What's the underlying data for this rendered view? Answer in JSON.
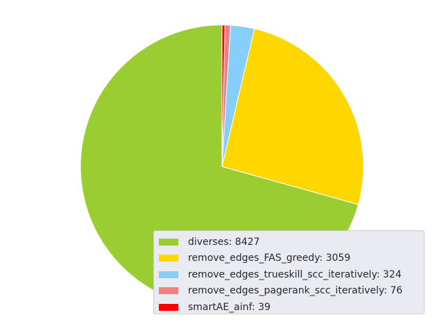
{
  "chart_data": {
    "type": "pie",
    "title": "",
    "slices": [
      {
        "label": "diverses",
        "value": 8427,
        "color": "#9acd32",
        "legend": "diverses: 8427"
      },
      {
        "label": "remove_edges_FAS_greedy",
        "value": 3059,
        "color": "#ffd700",
        "legend": "remove_edges_FAS_greedy: 3059"
      },
      {
        "label": "remove_edges_trueskill_scc_iteratively",
        "value": 324,
        "color": "#87cefa",
        "legend": "remove_edges_trueskill_scc_iteratively: 324"
      },
      {
        "label": "remove_edges_pagerank_scc_iteratively",
        "value": 76,
        "color": "#f08080",
        "legend": "remove_edges_pagerank_scc_iteratively: 76"
      },
      {
        "label": "smartAE_ainf",
        "value": 39,
        "color": "#ff0000",
        "legend": "smartAE_ainf: 39"
      }
    ],
    "start_angle": "top",
    "direction": "counterclockwise",
    "legend_position": "lower-right"
  }
}
